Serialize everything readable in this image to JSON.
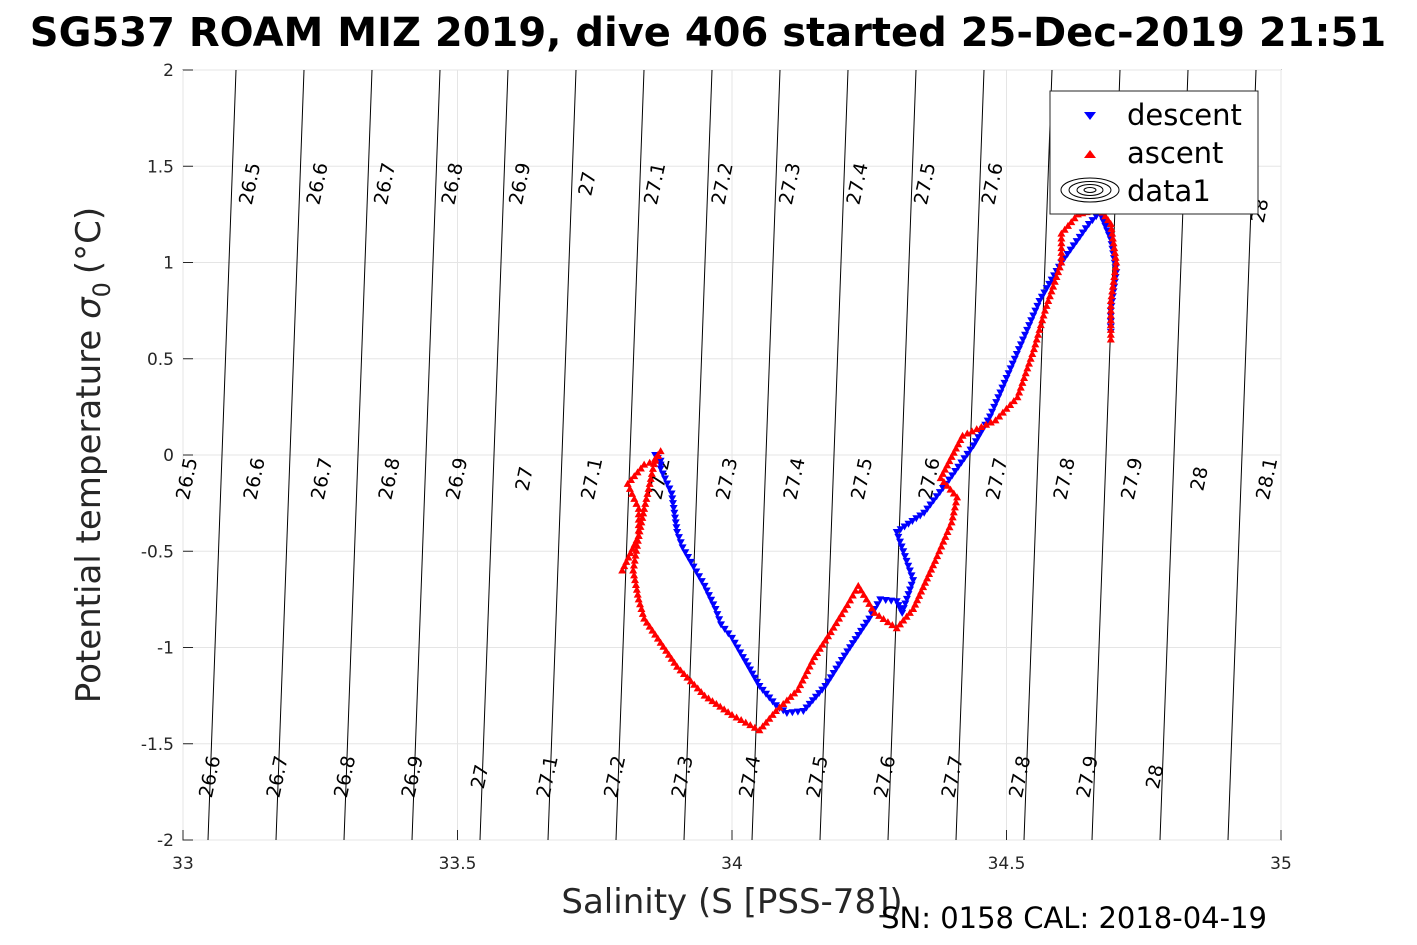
{
  "chart_data": {
    "type": "scatter",
    "title": "SG537 ROAM MIZ 2019, dive 406 started 25-Dec-2019 21:51",
    "xlabel": "Salinity (S [PSS-78])",
    "ylabel": "Potential temperature",
    "ylabel_symbol": "σ",
    "ylabel_sub": "0",
    "ylabel_unit": "(°C)",
    "footer": "SN: 0158  CAL: 2018-04-19",
    "xlim": [
      33,
      35
    ],
    "ylim": [
      -2,
      2
    ],
    "xticks": [
      33,
      33.5,
      34,
      34.5,
      35
    ],
    "xtick_labels": [
      "33",
      "33.5",
      "34",
      "34.5",
      "35"
    ],
    "yticks": [
      -2,
      -1.5,
      -1,
      -0.5,
      0,
      0.5,
      1,
      1.5,
      2
    ],
    "ytick_labels": [
      "-2",
      "-1.5",
      "-1",
      "-0.5",
      "0",
      "0.5",
      "1",
      "1.5",
      "2"
    ],
    "grid": true,
    "legend": {
      "placement": "top-right",
      "entries": [
        "descent",
        "ascent",
        "data1"
      ]
    },
    "series": [
      {
        "name": "descent",
        "marker": "triangle-down",
        "color": "#0000ff",
        "path": [
          [
            33.86,
            0.0
          ],
          [
            33.87,
            -0.03
          ],
          [
            33.87,
            -0.07
          ],
          [
            33.89,
            -0.2
          ],
          [
            33.9,
            -0.4
          ],
          [
            33.91,
            -0.48
          ],
          [
            33.93,
            -0.58
          ],
          [
            33.95,
            -0.68
          ],
          [
            33.97,
            -0.8
          ],
          [
            33.98,
            -0.88
          ],
          [
            34.0,
            -0.95
          ],
          [
            34.02,
            -1.05
          ],
          [
            34.05,
            -1.2
          ],
          [
            34.08,
            -1.3
          ],
          [
            34.1,
            -1.34
          ],
          [
            34.13,
            -1.33
          ],
          [
            34.17,
            -1.2
          ],
          [
            34.21,
            -1.02
          ],
          [
            34.25,
            -0.85
          ],
          [
            34.27,
            -0.75
          ],
          [
            34.3,
            -0.76
          ],
          [
            34.31,
            -0.82
          ],
          [
            34.33,
            -0.65
          ],
          [
            34.3,
            -0.4
          ],
          [
            34.35,
            -0.3
          ],
          [
            34.39,
            -0.15
          ],
          [
            34.44,
            0.05
          ],
          [
            34.47,
            0.2
          ],
          [
            34.5,
            0.4
          ],
          [
            34.53,
            0.6
          ],
          [
            34.56,
            0.8
          ],
          [
            34.6,
            1.0
          ],
          [
            34.65,
            1.2
          ],
          [
            34.67,
            1.26
          ],
          [
            34.69,
            1.12
          ],
          [
            34.7,
            0.95
          ],
          [
            34.69,
            0.75
          ],
          [
            34.69,
            0.64
          ]
        ]
      },
      {
        "name": "ascent",
        "marker": "triangle-up",
        "color": "#ff0000",
        "path": [
          [
            33.8,
            -0.6
          ],
          [
            33.83,
            -0.42
          ],
          [
            33.83,
            -0.28
          ],
          [
            33.81,
            -0.15
          ],
          [
            33.84,
            -0.05
          ],
          [
            33.86,
            -0.03
          ],
          [
            33.87,
            0.02
          ],
          [
            33.86,
            -0.02
          ],
          [
            33.84,
            -0.28
          ],
          [
            33.83,
            -0.42
          ],
          [
            33.82,
            -0.6
          ],
          [
            33.83,
            -0.75
          ],
          [
            33.84,
            -0.85
          ],
          [
            33.9,
            -1.1
          ],
          [
            33.95,
            -1.25
          ],
          [
            34.0,
            -1.35
          ],
          [
            34.05,
            -1.43
          ],
          [
            34.08,
            -1.33
          ],
          [
            34.12,
            -1.22
          ],
          [
            34.15,
            -1.05
          ],
          [
            34.18,
            -0.92
          ],
          [
            34.21,
            -0.78
          ],
          [
            34.23,
            -0.68
          ],
          [
            34.26,
            -0.82
          ],
          [
            34.3,
            -0.9
          ],
          [
            34.33,
            -0.8
          ],
          [
            34.37,
            -0.55
          ],
          [
            34.4,
            -0.35
          ],
          [
            34.41,
            -0.22
          ],
          [
            34.38,
            -0.12
          ],
          [
            34.42,
            0.1
          ],
          [
            34.48,
            0.18
          ],
          [
            34.52,
            0.3
          ],
          [
            34.55,
            0.55
          ],
          [
            34.57,
            0.75
          ],
          [
            34.6,
            1.0
          ],
          [
            34.6,
            1.15
          ],
          [
            34.63,
            1.25
          ],
          [
            34.67,
            1.28
          ],
          [
            34.69,
            1.2
          ],
          [
            34.7,
            1.0
          ],
          [
            34.69,
            0.8
          ],
          [
            34.69,
            0.6
          ]
        ]
      }
    ],
    "isopycnal_labels": {
      "top": [
        "26.5",
        "26.6",
        "26.7",
        "26.8",
        "26.9",
        "27",
        "27.1",
        "27.2",
        "27.3",
        "27.4",
        "27.5",
        "27.6",
        "28"
      ],
      "middle": [
        "26.5",
        "26.6",
        "26.7",
        "26.8",
        "26.9",
        "27",
        "27.1",
        "27.2",
        "27.3",
        "27.4",
        "27.5",
        "27.6",
        "27.7",
        "27.8",
        "27.9",
        "28",
        "28.1"
      ],
      "bottom": [
        "26.6",
        "26.7",
        "26.8",
        "26.9",
        "27",
        "27.1",
        "27.2",
        "27.3",
        "27.4",
        "27.5",
        "27.6",
        "27.7",
        "27.8",
        "27.9",
        "28"
      ]
    }
  }
}
